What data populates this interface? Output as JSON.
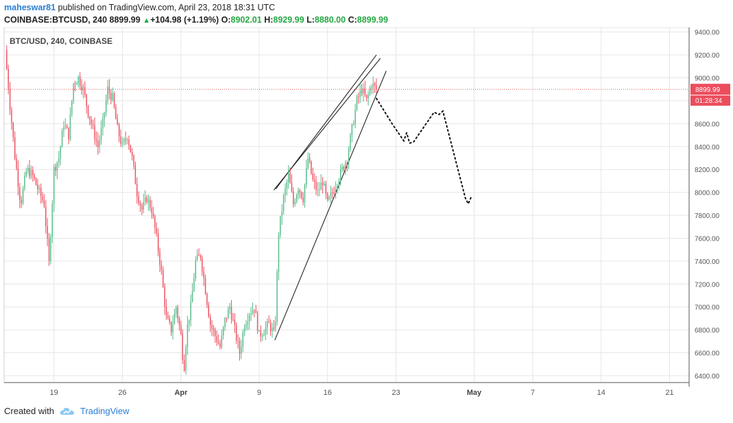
{
  "header": {
    "author": "maheswar81",
    "published_text": "published on TradingView.com, April 23, 2018 18:31 UTC",
    "symbol": "COINBASE:BTCUSD, 240",
    "last": "8899.99",
    "up_arrow": "▲",
    "change": "+104.98 (+1.19%)",
    "o_label": "O:",
    "o_value": "8902.01",
    "h_label": "H:",
    "h_value": "8929.99",
    "l_label": "L:",
    "l_value": "8880.00",
    "c_label": "C:",
    "c_value": "8899.99"
  },
  "footer": {
    "created_with": "Created with",
    "brand": "TradingView",
    "logo_icon": "tradingview-cloud-icon"
  },
  "colors": {
    "up": "#53b987",
    "down": "#eb4d5c",
    "grid": "#e6e6e6",
    "price_line": "#d9534f",
    "price_label_bg": "#eb4d5c",
    "brand": "#2a7fd4"
  },
  "chart_data": {
    "type": "candlestick",
    "title": "BTC/USD, 240, COINBASE",
    "ylim": [
      6340,
      9440
    ],
    "yticks": [
      9400,
      9200,
      9000,
      8800,
      8600,
      8400,
      8200,
      8000,
      7800,
      7600,
      7400,
      7200,
      7000,
      6800,
      6600,
      6400
    ],
    "ytick_labels": [
      "9400.00",
      "9200.00",
      "9000.00",
      "8800.00",
      "8600.00",
      "8400.00",
      "8200.00",
      "8000.00",
      "7800.00",
      "7600.00",
      "7400.00",
      "7200.00",
      "7000.00",
      "6800.00",
      "6600.00",
      "6400.00"
    ],
    "xtick_labels": [
      {
        "label": "19",
        "day": 19,
        "month": false
      },
      {
        "label": "26",
        "day": 26,
        "month": false
      },
      {
        "label": "Apr",
        "day": 32,
        "month": true
      },
      {
        "label": "9",
        "day": 40,
        "month": false
      },
      {
        "label": "16",
        "day": 47,
        "month": false
      },
      {
        "label": "23",
        "day": 54,
        "month": false
      },
      {
        "label": "May",
        "day": 62,
        "month": true
      },
      {
        "label": "7",
        "day": 68,
        "month": false
      },
      {
        "label": "14",
        "day": 75,
        "month": false
      },
      {
        "label": "21",
        "day": 82,
        "month": false
      }
    ],
    "x_day_range": [
      13.9,
      84.0
    ],
    "price_line": 8899.99,
    "price_label": "8899.99",
    "countdown_label": "01:28:34",
    "close_path": [
      [
        14.0,
        9240
      ],
      [
        14.5,
        8760
      ],
      [
        15.0,
        8320
      ],
      [
        15.6,
        7900
      ],
      [
        16.2,
        8200
      ],
      [
        16.8,
        8150
      ],
      [
        17.5,
        8000
      ],
      [
        18.0,
        7900
      ],
      [
        18.5,
        7380
      ],
      [
        19.0,
        8200
      ],
      [
        19.5,
        8300
      ],
      [
        20.0,
        8600
      ],
      [
        20.5,
        8500
      ],
      [
        21.0,
        8950
      ],
      [
        21.5,
        9000
      ],
      [
        22.0,
        8900
      ],
      [
        22.5,
        8700
      ],
      [
        23.0,
        8550
      ],
      [
        23.5,
        8400
      ],
      [
        24.0,
        8600
      ],
      [
        24.5,
        8900
      ],
      [
        25.0,
        8820
      ],
      [
        25.5,
        8550
      ],
      [
        26.0,
        8400
      ],
      [
        26.5,
        8500
      ],
      [
        27.0,
        8300
      ],
      [
        27.5,
        8000
      ],
      [
        28.0,
        7850
      ],
      [
        28.5,
        7950
      ],
      [
        29.0,
        7850
      ],
      [
        29.5,
        7600
      ],
      [
        30.0,
        7300
      ],
      [
        30.5,
        6900
      ],
      [
        31.0,
        6800
      ],
      [
        31.5,
        7000
      ],
      [
        32.0,
        6750
      ],
      [
        32.3,
        6450
      ],
      [
        32.6,
        6800
      ],
      [
        33.0,
        7000
      ],
      [
        33.5,
        7400
      ],
      [
        34.0,
        7450
      ],
      [
        34.5,
        7150
      ],
      [
        35.0,
        6850
      ],
      [
        35.5,
        6750
      ],
      [
        36.0,
        6650
      ],
      [
        36.5,
        6880
      ],
      [
        37.0,
        7000
      ],
      [
        37.5,
        6800
      ],
      [
        38.0,
        6600
      ],
      [
        38.5,
        6850
      ],
      [
        39.0,
        6950
      ],
      [
        39.5,
        7000
      ],
      [
        40.0,
        6750
      ],
      [
        40.5,
        6800
      ],
      [
        41.0,
        6850
      ],
      [
        41.6,
        6750
      ],
      [
        42.0,
        7650
      ],
      [
        42.5,
        7950
      ],
      [
        43.0,
        8150
      ],
      [
        43.5,
        7900
      ],
      [
        44.0,
        8050
      ],
      [
        44.5,
        7950
      ],
      [
        45.0,
        8300
      ],
      [
        45.5,
        8100
      ],
      [
        46.0,
        8000
      ],
      [
        46.5,
        8100
      ],
      [
        47.0,
        7900
      ],
      [
        47.5,
        8000
      ],
      [
        48.0,
        8100
      ],
      [
        48.5,
        8200
      ],
      [
        49.0,
        8300
      ],
      [
        49.5,
        8550
      ],
      [
        50.0,
        8800
      ],
      [
        50.5,
        8900
      ],
      [
        51.0,
        8800
      ],
      [
        51.5,
        8950
      ],
      [
        52.0,
        8900
      ]
    ],
    "projection_path": [
      [
        52.0,
        8820
      ],
      [
        53.6,
        8600
      ],
      [
        54.8,
        8450
      ],
      [
        55.1,
        8520
      ],
      [
        55.4,
        8430
      ],
      [
        55.8,
        8440
      ],
      [
        57.9,
        8700
      ],
      [
        58.4,
        8680
      ],
      [
        58.8,
        8710
      ],
      [
        61.1,
        7950
      ],
      [
        61.4,
        7900
      ],
      [
        61.7,
        7960
      ]
    ],
    "trendlines": [
      {
        "from": [
          41.7,
          8030
        ],
        "to": [
          52.0,
          9200
        ]
      },
      {
        "from": [
          41.5,
          8020
        ],
        "to": [
          52.4,
          9170
        ]
      },
      {
        "from": [
          41.6,
          6710
        ],
        "to": [
          53.0,
          9060
        ]
      }
    ]
  }
}
